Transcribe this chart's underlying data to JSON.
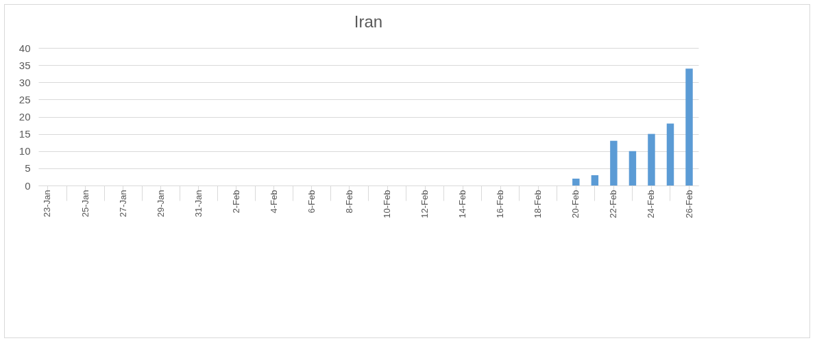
{
  "chart_data": {
    "type": "bar",
    "title": "Iran",
    "categories": [
      "23-Jan",
      null,
      "25-Jan",
      null,
      "27-Jan",
      null,
      "29-Jan",
      null,
      "31-Jan",
      null,
      "2-Feb",
      null,
      "4-Feb",
      null,
      "6-Feb",
      null,
      "8-Feb",
      null,
      "10-Feb",
      null,
      "12-Feb",
      null,
      "14-Feb",
      null,
      "16-Feb",
      null,
      "18-Feb",
      null,
      "20-Feb",
      null,
      "22-Feb",
      null,
      "24-Feb",
      null,
      "26-Feb"
    ],
    "values": [
      0,
      0,
      0,
      0,
      0,
      0,
      0,
      0,
      0,
      0,
      0,
      0,
      0,
      0,
      0,
      0,
      0,
      0,
      0,
      0,
      0,
      0,
      0,
      0,
      0,
      0,
      0,
      0,
      2,
      3,
      13,
      10,
      15,
      18,
      34
    ],
    "color": "#5b9bd5",
    "ylim": [
      0,
      40
    ],
    "yticks": [
      0,
      5,
      10,
      15,
      20,
      25,
      30,
      35,
      40
    ],
    "grid": "y"
  }
}
